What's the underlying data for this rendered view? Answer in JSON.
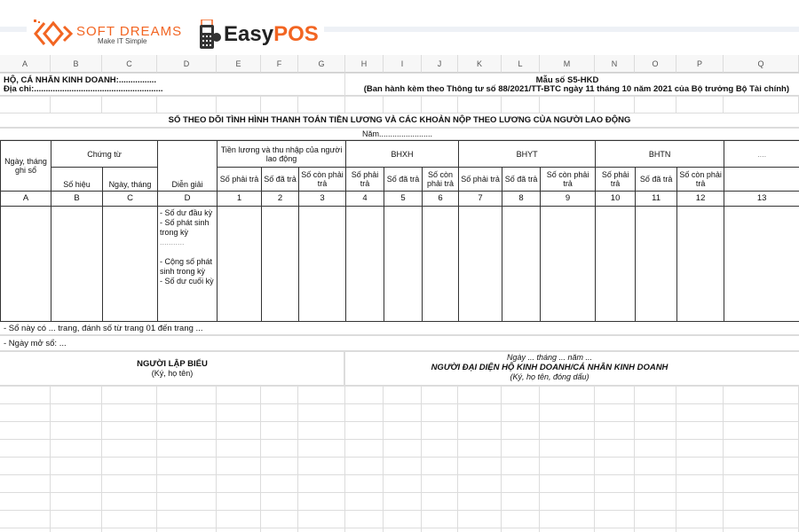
{
  "logos": {
    "softdreams": {
      "name": "SOFT DREAMS",
      "tagline": "Make IT Simple",
      "color": "#f26522"
    },
    "easypos": {
      "name_a": "Easy",
      "name_b": "POS",
      "color": "#f26522"
    }
  },
  "columns": [
    "A",
    "B",
    "C",
    "D",
    "E",
    "F",
    "G",
    "H",
    "I",
    "J",
    "K",
    "L",
    "M",
    "N",
    "O",
    "P",
    "Q"
  ],
  "header": {
    "business": "HỘ, CÁ NHÂN KINH DOANH:................",
    "address": "Địa chỉ:.......................................................",
    "form_no": "Mẫu số S5-HKD",
    "issued": "(Ban hành kèm theo Thông tư số 88/2021/TT-BTC ngày 11 tháng 10 năm 2021 của Bộ trưởng Bộ Tài chính)",
    "title": "SỔ THEO DÕI TÌNH HÌNH THANH TOÁN TIỀN LƯƠNG VÀ CÁC KHOẢN NỘP THEO LƯƠNG CỦA NGƯỜI LAO ĐỘNG",
    "year": "Năm........................"
  },
  "table": {
    "date_col": "Ngày, tháng ghi sổ",
    "voucher": "Chứng từ",
    "voucher_no": "Số hiệu",
    "voucher_date": "Ngày, tháng",
    "desc": "Diễn giải",
    "salary": "Tiền lương và thu nhập của người lao động",
    "bhxh": "BHXH",
    "bhyt": "BHYT",
    "bhtn": "BHTN",
    "other": "....",
    "sub": [
      "Số phải trả",
      "Số đã trả",
      "Số còn phải trả",
      "Số phải trả",
      "Số đã trả",
      "Số còn phải trả",
      "Số phải trả",
      "Số đã trả",
      "Số còn phải trả",
      "Số phải trả",
      "Số đã trả",
      "Số còn phải trả"
    ],
    "codes": [
      "A",
      "B",
      "C",
      "D",
      "1",
      "2",
      "3",
      "4",
      "5",
      "6",
      "7",
      "8",
      "9",
      "10",
      "11",
      "12",
      "13"
    ],
    "desc_lines": [
      "- Số dư đầu kỳ",
      "- Số phát sinh trong kỳ",
      "...........",
      "",
      "- Cộng số phát sinh trong kỳ",
      "- Số dư cuối kỳ"
    ]
  },
  "notes": [
    "- Sổ này có ... trang, đánh số từ trang 01 đến trang ...",
    "- Ngày mở sổ: ..."
  ],
  "sign": {
    "left_title": "NGƯỜI LẬP BIỂU",
    "left_sub": "(Ký, họ tên)",
    "date": "Ngày ... tháng ... năm ...",
    "right_title": "NGƯỜI ĐẠI DIỆN HỘ KINH DOANH/CÁ NHÂN KINH DOANH",
    "right_sub": "(Ký, họ tên, đóng dấu)"
  }
}
